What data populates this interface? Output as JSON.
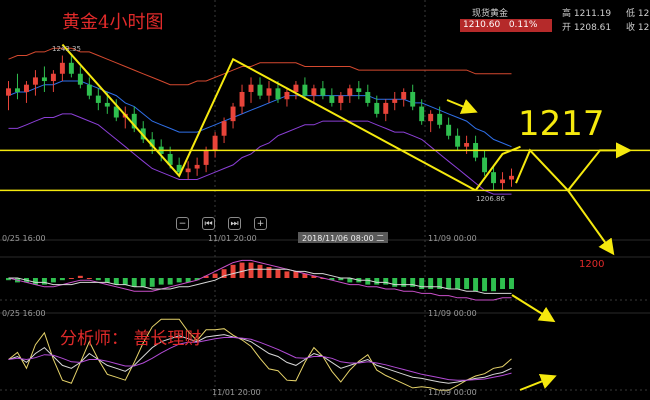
{
  "quote": {
    "name": "现货黄金",
    "price": "1210.60",
    "change_pct": "0.11%",
    "high_label": "高",
    "high_value": "1211.19",
    "open_label": "开",
    "open_value": "1208.61",
    "low_label": "低",
    "low_value": "12",
    "close_label": "收",
    "close_value": "12"
  },
  "toolbar": {
    "zoom_out_icon": "−",
    "prev_icon": "⏮",
    "next_icon": "⏭",
    "zoom_in_icon": "+"
  },
  "colors": {
    "up": "#e8443a",
    "down": "#2fbf4f",
    "bb_upper": "#d4492f",
    "bb_mid": "#2f6fe8",
    "bb_lower": "#8b3fd6",
    "annotation": "#f5e90e",
    "annotation_text": "#e02a2a",
    "grid": "#3a3a3a"
  },
  "chart_data": [
    {
      "type": "candlestick",
      "title": "黄金4小时图",
      "price_labels": {
        "high_marker": "1243.35",
        "low_marker": "1206.86"
      },
      "x_tick_labels": [
        "0/25 16:00",
        "11/01 20:00",
        "11/09 00:00"
      ],
      "crosshair_label": "2018/11/06 08:00 二",
      "candles_ohlc": [
        [
          1232,
          1236,
          1228,
          1234
        ],
        [
          1234,
          1238,
          1231,
          1233
        ],
        [
          1233,
          1236,
          1230,
          1235
        ],
        [
          1235,
          1239,
          1232,
          1237
        ],
        [
          1237,
          1240,
          1233,
          1236
        ],
        [
          1236,
          1239,
          1233,
          1238
        ],
        [
          1238,
          1243,
          1236,
          1241
        ],
        [
          1241,
          1243,
          1237,
          1238
        ],
        [
          1238,
          1240,
          1234,
          1235
        ],
        [
          1235,
          1237,
          1231,
          1232
        ],
        [
          1232,
          1234,
          1228,
          1230
        ],
        [
          1230,
          1233,
          1227,
          1229
        ],
        [
          1229,
          1231,
          1225,
          1226
        ],
        [
          1226,
          1229,
          1223,
          1227
        ],
        [
          1227,
          1229,
          1222,
          1223
        ],
        [
          1223,
          1225,
          1219,
          1220
        ],
        [
          1220,
          1222,
          1216,
          1218
        ],
        [
          1218,
          1220,
          1214,
          1216
        ],
        [
          1216,
          1218,
          1212,
          1213
        ],
        [
          1213,
          1215,
          1210,
          1211
        ],
        [
          1211,
          1214,
          1209,
          1212
        ],
        [
          1212,
          1215,
          1210,
          1213
        ],
        [
          1213,
          1218,
          1211,
          1217
        ],
        [
          1217,
          1222,
          1215,
          1221
        ],
        [
          1221,
          1226,
          1219,
          1225
        ],
        [
          1225,
          1230,
          1223,
          1229
        ],
        [
          1229,
          1235,
          1227,
          1233
        ],
        [
          1233,
          1237,
          1230,
          1235
        ],
        [
          1235,
          1237,
          1231,
          1232
        ],
        [
          1232,
          1236,
          1230,
          1234
        ],
        [
          1234,
          1236,
          1230,
          1231
        ],
        [
          1231,
          1234,
          1229,
          1233
        ],
        [
          1233,
          1236,
          1231,
          1235
        ],
        [
          1235,
          1237,
          1231,
          1232
        ],
        [
          1232,
          1235,
          1230,
          1234
        ],
        [
          1234,
          1236,
          1231,
          1232
        ],
        [
          1232,
          1234,
          1229,
          1230
        ],
        [
          1230,
          1233,
          1228,
          1232
        ],
        [
          1232,
          1235,
          1230,
          1234
        ],
        [
          1234,
          1236,
          1231,
          1233
        ],
        [
          1233,
          1235,
          1229,
          1230
        ],
        [
          1230,
          1232,
          1226,
          1227
        ],
        [
          1227,
          1231,
          1225,
          1230
        ],
        [
          1230,
          1233,
          1228,
          1231
        ],
        [
          1231,
          1234,
          1229,
          1233
        ],
        [
          1233,
          1235,
          1228,
          1229
        ],
        [
          1229,
          1231,
          1224,
          1225
        ],
        [
          1225,
          1228,
          1222,
          1227
        ],
        [
          1227,
          1229,
          1223,
          1224
        ],
        [
          1224,
          1226,
          1220,
          1221
        ],
        [
          1221,
          1223,
          1217,
          1218
        ],
        [
          1218,
          1221,
          1216,
          1219
        ],
        [
          1219,
          1221,
          1214,
          1215
        ],
        [
          1215,
          1217,
          1210,
          1211
        ],
        [
          1211,
          1213,
          1206,
          1208
        ],
        [
          1208,
          1211,
          1206,
          1209
        ],
        [
          1209,
          1212,
          1207,
          1210
        ]
      ],
      "bollinger": {
        "upper": [
          1242,
          1243,
          1243,
          1244,
          1244,
          1245,
          1245,
          1245,
          1244,
          1244,
          1243,
          1242,
          1241,
          1240,
          1239,
          1238,
          1237,
          1236,
          1235,
          1235,
          1235,
          1236,
          1236,
          1237,
          1238,
          1239,
          1240,
          1240,
          1241,
          1241,
          1241,
          1241,
          1241,
          1240,
          1240,
          1240,
          1240,
          1240,
          1240,
          1239,
          1239,
          1239,
          1239,
          1239,
          1239,
          1239,
          1239,
          1239,
          1239,
          1239,
          1239,
          1239,
          1238,
          1238,
          1238,
          1238,
          1238
        ],
        "mid": [
          1232,
          1233,
          1233,
          1234,
          1235,
          1235,
          1236,
          1236,
          1236,
          1235,
          1234,
          1233,
          1232,
          1230,
          1229,
          1227,
          1225,
          1224,
          1223,
          1222,
          1222,
          1222,
          1223,
          1224,
          1225,
          1226,
          1227,
          1228,
          1229,
          1230,
          1231,
          1232,
          1232,
          1232,
          1232,
          1232,
          1232,
          1232,
          1232,
          1232,
          1232,
          1231,
          1231,
          1231,
          1231,
          1230,
          1230,
          1229,
          1228,
          1227,
          1226,
          1225,
          1223,
          1222,
          1220,
          1219,
          1218
        ],
        "lower": [
          1223,
          1223,
          1224,
          1225,
          1226,
          1226,
          1227,
          1227,
          1226,
          1225,
          1224,
          1222,
          1220,
          1218,
          1216,
          1214,
          1212,
          1211,
          1210,
          1209,
          1209,
          1209,
          1210,
          1211,
          1212,
          1213,
          1215,
          1216,
          1218,
          1219,
          1221,
          1222,
          1223,
          1224,
          1224,
          1225,
          1225,
          1225,
          1225,
          1225,
          1225,
          1224,
          1223,
          1222,
          1222,
          1221,
          1220,
          1218,
          1216,
          1214,
          1212,
          1210,
          1208,
          1206,
          1205,
          1205,
          1205
        ]
      },
      "annotations": {
        "resistance_label": "1217",
        "resistance_level": 1217,
        "support_level": 1206,
        "target_label": "1200",
        "target_level": 1200
      }
    },
    {
      "type": "bar",
      "title": "MACD",
      "histogram": [
        -1,
        -2,
        -2,
        -3,
        -3,
        -2,
        -1,
        0,
        1,
        0,
        -1,
        -2,
        -3,
        -3,
        -4,
        -4,
        -4,
        -3,
        -3,
        -2,
        -2,
        -1,
        1,
        2,
        4,
        6,
        7,
        7,
        6,
        5,
        4,
        3,
        3,
        2,
        1,
        0,
        -1,
        -1,
        -2,
        -2,
        -3,
        -3,
        -3,
        -4,
        -4,
        -4,
        -5,
        -5,
        -5,
        -5,
        -5,
        -5,
        -6,
        -6,
        -6,
        -5,
        -5
      ],
      "dif": [
        0,
        -1,
        -2,
        -3,
        -4,
        -4,
        -3,
        -2,
        -1,
        -1,
        -2,
        -3,
        -4,
        -5,
        -6,
        -6,
        -6,
        -5,
        -4,
        -3,
        -2,
        -1,
        1,
        3,
        5,
        7,
        8,
        8,
        7,
        6,
        5,
        4,
        3,
        2,
        1,
        0,
        -1,
        -2,
        -3,
        -3,
        -4,
        -4,
        -5,
        -5,
        -6,
        -6,
        -7,
        -7,
        -8,
        -8,
        -9,
        -9,
        -10,
        -10,
        -10,
        -9,
        -9
      ],
      "dea": [
        0,
        0,
        -1,
        -2,
        -2,
        -3,
        -3,
        -3,
        -2,
        -2,
        -2,
        -2,
        -3,
        -3,
        -4,
        -4,
        -5,
        -5,
        -5,
        -4,
        -4,
        -3,
        -2,
        -1,
        1,
        2,
        3,
        4,
        4,
        4,
        4,
        4,
        3,
        3,
        2,
        2,
        1,
        0,
        0,
        -1,
        -1,
        -2,
        -2,
        -3,
        -3,
        -3,
        -4,
        -4,
        -4,
        -5,
        -5,
        -6,
        -6,
        -7,
        -7,
        -7,
        -7
      ]
    },
    {
      "type": "line",
      "title": "KDJ",
      "k": [
        50,
        55,
        45,
        60,
        70,
        55,
        40,
        35,
        45,
        60,
        50,
        40,
        35,
        30,
        40,
        55,
        70,
        80,
        85,
        90,
        85,
        80,
        88,
        90,
        92,
        88,
        85,
        80,
        70,
        60,
        55,
        45,
        40,
        50,
        60,
        55,
        45,
        35,
        40,
        45,
        50,
        40,
        35,
        30,
        25,
        20,
        18,
        15,
        12,
        10,
        12,
        15,
        18,
        20,
        25,
        28,
        35
      ],
      "d": [
        50,
        52,
        50,
        53,
        58,
        57,
        52,
        46,
        45,
        50,
        50,
        47,
        43,
        39,
        39,
        44,
        52,
        61,
        69,
        76,
        79,
        79,
        82,
        85,
        87,
        87,
        86,
        84,
        79,
        73,
        67,
        60,
        53,
        52,
        55,
        55,
        52,
        46,
        44,
        44,
        46,
        44,
        41,
        37,
        33,
        29,
        25,
        22,
        19,
        16,
        15,
        15,
        16,
        17,
        20,
        23,
        27
      ],
      "j": [
        50,
        62,
        35,
        75,
        95,
        50,
        15,
        10,
        45,
        80,
        50,
        25,
        20,
        15,
        45,
        78,
        105,
        118,
        118,
        118,
        97,
        82,
        100,
        100,
        102,
        91,
        83,
        72,
        52,
        34,
        31,
        15,
        14,
        45,
        70,
        55,
        30,
        12,
        32,
        47,
        58,
        32,
        23,
        16,
        9,
        2,
        4,
        2,
        -2,
        -2,
        6,
        15,
        22,
        26,
        35,
        38,
        51
      ]
    }
  ],
  "footer_text": {
    "analyst": "分析师：  善长理财"
  }
}
